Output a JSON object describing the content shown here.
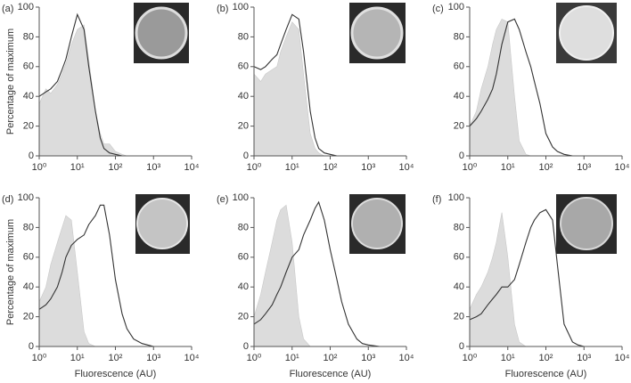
{
  "chart_data": [
    {
      "type": "line",
      "panel": "(a)",
      "ylabel": "Percentage of maximum",
      "log_x": true,
      "xlim": [
        1,
        10000
      ],
      "ylim": [
        0,
        100
      ],
      "xticks": [
        {
          "value": 1,
          "label": "10⁰"
        },
        {
          "value": 10,
          "label": "10¹"
        },
        {
          "value": 100,
          "label": "10²"
        },
        {
          "value": 1000,
          "label": "10³"
        },
        {
          "value": 10000,
          "label": "10⁴"
        }
      ],
      "yticks": [
        0,
        20,
        40,
        60,
        80,
        100
      ],
      "x": [
        1,
        1.5,
        2,
        3,
        4,
        5,
        7,
        10,
        15,
        20,
        30,
        40,
        50,
        70,
        100,
        150,
        200,
        300,
        500,
        700,
        1000,
        2000,
        10000
      ],
      "series": [
        {
          "color": "#dcdcdc",
          "fill": true,
          "values": [
            35,
            45,
            42,
            48,
            55,
            62,
            75,
            85,
            88,
            65,
            30,
            15,
            8,
            8,
            3,
            1,
            0,
            0,
            0,
            0,
            0,
            0,
            0
          ]
        },
        {
          "color": "#333333",
          "fill": false,
          "values": [
            40,
            43,
            45,
            50,
            58,
            65,
            80,
            95,
            85,
            60,
            30,
            12,
            5,
            2,
            1,
            0,
            0,
            0,
            0,
            0,
            0,
            0,
            0
          ]
        }
      ]
    },
    {
      "type": "line",
      "panel": "(b)",
      "log_x": true,
      "xlim": [
        1,
        10000
      ],
      "ylim": [
        0,
        100
      ],
      "xticks": [
        {
          "value": 1,
          "label": "10⁰"
        },
        {
          "value": 10,
          "label": "10¹"
        },
        {
          "value": 100,
          "label": "10²"
        },
        {
          "value": 1000,
          "label": "10³"
        },
        {
          "value": 10000,
          "label": "10⁴"
        }
      ],
      "yticks": [
        0,
        20,
        40,
        60,
        80,
        100
      ],
      "x": [
        1,
        1.5,
        2,
        3,
        4,
        5,
        7,
        10,
        15,
        20,
        30,
        40,
        50,
        70,
        100,
        150,
        200,
        300,
        500,
        700,
        1000,
        2000,
        10000
      ],
      "series": [
        {
          "color": "#dcdcdc",
          "fill": true,
          "values": [
            55,
            50,
            55,
            58,
            60,
            70,
            80,
            90,
            85,
            55,
            15,
            5,
            2,
            0,
            0,
            0,
            0,
            0,
            0,
            0,
            0,
            0,
            0
          ]
        },
        {
          "color": "#333333",
          "fill": false,
          "values": [
            60,
            58,
            60,
            65,
            68,
            75,
            85,
            95,
            92,
            70,
            30,
            12,
            5,
            2,
            1,
            0,
            0,
            0,
            0,
            0,
            0,
            0,
            0
          ]
        }
      ]
    },
    {
      "type": "line",
      "panel": "(c)",
      "log_x": true,
      "xlim": [
        1,
        10000
      ],
      "ylim": [
        0,
        100
      ],
      "xticks": [
        {
          "value": 1,
          "label": "10⁰"
        },
        {
          "value": 10,
          "label": "10¹"
        },
        {
          "value": 100,
          "label": "10²"
        },
        {
          "value": 1000,
          "label": "10³"
        },
        {
          "value": 10000,
          "label": "10⁴"
        }
      ],
      "yticks": [
        0,
        20,
        40,
        60,
        80,
        100
      ],
      "x": [
        1,
        1.5,
        2,
        3,
        4,
        5,
        7,
        10,
        15,
        20,
        30,
        40,
        50,
        70,
        100,
        150,
        200,
        300,
        500,
        700,
        1000,
        2000,
        10000
      ],
      "series": [
        {
          "color": "#dcdcdc",
          "fill": true,
          "values": [
            20,
            30,
            45,
            60,
            75,
            85,
            92,
            90,
            40,
            10,
            1,
            0,
            0,
            0,
            0,
            0,
            0,
            0,
            0,
            0,
            0,
            0,
            0
          ]
        },
        {
          "color": "#333333",
          "fill": false,
          "values": [
            20,
            25,
            30,
            38,
            45,
            55,
            75,
            90,
            92,
            85,
            70,
            60,
            50,
            35,
            15,
            6,
            3,
            1,
            0,
            0,
            0,
            0,
            0
          ]
        }
      ]
    },
    {
      "type": "line",
      "panel": "(d)",
      "ylabel": "Percentage of maximum",
      "xlabel": "Fluorescence (AU)",
      "log_x": true,
      "xlim": [
        1,
        10000
      ],
      "ylim": [
        0,
        100
      ],
      "xticks": [
        {
          "value": 1,
          "label": "10⁰"
        },
        {
          "value": 10,
          "label": "10¹"
        },
        {
          "value": 100,
          "label": "10²"
        },
        {
          "value": 1000,
          "label": "10³"
        },
        {
          "value": 10000,
          "label": "10⁴"
        }
      ],
      "yticks": [
        0,
        20,
        40,
        60,
        80,
        100
      ],
      "x": [
        1,
        1.5,
        2,
        3,
        4,
        5,
        7,
        10,
        15,
        20,
        30,
        40,
        50,
        70,
        100,
        150,
        200,
        300,
        500,
        700,
        1000,
        2000,
        10000
      ],
      "series": [
        {
          "color": "#dcdcdc",
          "fill": true,
          "values": [
            30,
            40,
            55,
            70,
            80,
            88,
            85,
            50,
            10,
            2,
            0,
            0,
            0,
            0,
            0,
            0,
            0,
            0,
            0,
            0,
            0,
            0,
            0
          ]
        },
        {
          "color": "#333333",
          "fill": false,
          "values": [
            25,
            28,
            32,
            40,
            50,
            60,
            68,
            72,
            75,
            82,
            88,
            95,
            95,
            75,
            45,
            22,
            12,
            5,
            2,
            1,
            0,
            0,
            0
          ]
        }
      ]
    },
    {
      "type": "line",
      "panel": "(e)",
      "xlabel": "Fluorescence (AU)",
      "log_x": true,
      "xlim": [
        1,
        10000
      ],
      "ylim": [
        0,
        100
      ],
      "xticks": [
        {
          "value": 1,
          "label": "10⁰"
        },
        {
          "value": 10,
          "label": "10¹"
        },
        {
          "value": 100,
          "label": "10²"
        },
        {
          "value": 1000,
          "label": "10³"
        },
        {
          "value": 10000,
          "label": "10⁴"
        }
      ],
      "yticks": [
        0,
        20,
        40,
        60,
        80,
        100
      ],
      "x": [
        1,
        1.5,
        2,
        3,
        4,
        5,
        7,
        10,
        15,
        20,
        30,
        40,
        50,
        70,
        100,
        150,
        200,
        300,
        500,
        700,
        1000,
        2000,
        10000
      ],
      "series": [
        {
          "color": "#dcdcdc",
          "fill": true,
          "values": [
            20,
            35,
            50,
            70,
            85,
            92,
            95,
            70,
            20,
            5,
            0,
            0,
            0,
            0,
            0,
            0,
            0,
            0,
            0,
            0,
            0,
            0,
            0
          ]
        },
        {
          "color": "#333333",
          "fill": false,
          "values": [
            15,
            18,
            22,
            28,
            35,
            40,
            50,
            60,
            65,
            75,
            85,
            93,
            97,
            85,
            65,
            45,
            30,
            15,
            5,
            2,
            1,
            0,
            0
          ]
        }
      ]
    },
    {
      "type": "line",
      "panel": "(f)",
      "xlabel": "Fluorescence (AU)",
      "log_x": true,
      "xlim": [
        1,
        10000
      ],
      "ylim": [
        0,
        100
      ],
      "xticks": [
        {
          "value": 1,
          "label": "10⁰"
        },
        {
          "value": 10,
          "label": "10¹"
        },
        {
          "value": 100,
          "label": "10²"
        },
        {
          "value": 1000,
          "label": "10³"
        },
        {
          "value": 10000,
          "label": "10⁴"
        }
      ],
      "yticks": [
        0,
        20,
        40,
        60,
        80,
        100
      ],
      "x": [
        1,
        1.5,
        2,
        3,
        4,
        5,
        7,
        10,
        15,
        20,
        30,
        40,
        50,
        70,
        100,
        150,
        200,
        300,
        500,
        700,
        1000,
        2000,
        10000
      ],
      "series": [
        {
          "color": "#dcdcdc",
          "fill": true,
          "values": [
            25,
            35,
            40,
            50,
            60,
            70,
            90,
            60,
            15,
            3,
            0,
            0,
            0,
            0,
            0,
            0,
            0,
            0,
            0,
            0,
            0,
            0,
            0
          ]
        },
        {
          "color": "#333333",
          "fill": false,
          "values": [
            18,
            20,
            22,
            28,
            32,
            35,
            40,
            40,
            45,
            55,
            70,
            80,
            85,
            90,
            92,
            85,
            55,
            15,
            3,
            1,
            0,
            0,
            0
          ]
        }
      ]
    }
  ]
}
